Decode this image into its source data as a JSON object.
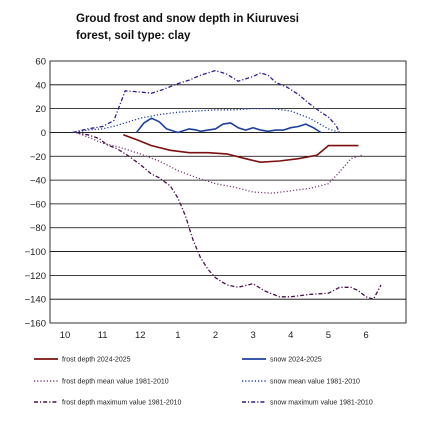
{
  "chart_data": {
    "type": "line",
    "title_lines": [
      "Groud frost and snow depth in Kiuruvesi",
      "forest, soil type: clay"
    ],
    "xlabel": "",
    "ylabel": "",
    "ylim": [
      -160,
      60
    ],
    "yticks": [
      60,
      40,
      20,
      0,
      -20,
      -40,
      -60,
      -80,
      -100,
      -120,
      -140,
      -160
    ],
    "xlim": [
      10,
      7
    ],
    "x_tick_labels": [
      "10",
      "11",
      "12",
      "1",
      "2",
      "3",
      "4",
      "5",
      "6"
    ],
    "grid": "horizontal",
    "legend_position": "bottom",
    "series": [
      {
        "name": "frost depth 2024-2025",
        "color": "#7b1010",
        "style": "solid",
        "points": [
          [
            11.55,
            -2
          ],
          [
            11.9,
            -6
          ],
          [
            12.3,
            -11
          ],
          [
            12.8,
            -15
          ],
          [
            13.3,
            -17
          ],
          [
            13.8,
            -17
          ],
          [
            14.3,
            -18
          ],
          [
            14.8,
            -22
          ],
          [
            15.2,
            -25
          ],
          [
            15.7,
            -24
          ],
          [
            16.2,
            -22
          ],
          [
            16.7,
            -19
          ],
          [
            17.0,
            -11
          ],
          [
            17.3,
            -11
          ],
          [
            17.6,
            -11
          ],
          [
            17.8,
            -11
          ]
        ]
      },
      {
        "name": "snow 2024-2025",
        "color": "#1f3fa0",
        "style": "solid",
        "points": [
          [
            11.9,
            0
          ],
          [
            12.1,
            8
          ],
          [
            12.3,
            12
          ],
          [
            12.5,
            9
          ],
          [
            12.7,
            3
          ],
          [
            13.0,
            0
          ],
          [
            13.3,
            3
          ],
          [
            13.5,
            2
          ],
          [
            13.6,
            1
          ],
          [
            13.8,
            2
          ],
          [
            14.0,
            3
          ],
          [
            14.2,
            7
          ],
          [
            14.4,
            8
          ],
          [
            14.6,
            4
          ],
          [
            14.8,
            2
          ],
          [
            15.0,
            4
          ],
          [
            15.2,
            2
          ],
          [
            15.4,
            1
          ],
          [
            15.6,
            2
          ],
          [
            15.8,
            2
          ],
          [
            16.0,
            4
          ],
          [
            16.2,
            5
          ],
          [
            16.4,
            7
          ],
          [
            16.6,
            4
          ],
          [
            16.8,
            0
          ]
        ]
      },
      {
        "name": "frost depth mean value 1981-2010",
        "color": "#7a3d7a",
        "style": "dotted",
        "points": [
          [
            10.3,
            0
          ],
          [
            10.7,
            -5
          ],
          [
            11.0,
            -9
          ],
          [
            11.4,
            -12
          ],
          [
            11.7,
            -15
          ],
          [
            12.0,
            -18
          ],
          [
            12.5,
            -24
          ],
          [
            13.0,
            -32
          ],
          [
            13.5,
            -38
          ],
          [
            14.0,
            -43
          ],
          [
            14.5,
            -46
          ],
          [
            15.0,
            -50
          ],
          [
            15.5,
            -51
          ],
          [
            16.0,
            -49
          ],
          [
            16.5,
            -47
          ],
          [
            17.0,
            -43
          ],
          [
            17.3,
            -33
          ],
          [
            17.6,
            -22
          ],
          [
            17.9,
            -19
          ]
        ]
      },
      {
        "name": "snow mean value 1981-2010",
        "color": "#1f3fa0",
        "style": "dotted",
        "points": [
          [
            10.2,
            0
          ],
          [
            10.6,
            2
          ],
          [
            11.0,
            3
          ],
          [
            11.4,
            6
          ],
          [
            11.7,
            9
          ],
          [
            12.0,
            12
          ],
          [
            12.5,
            15
          ],
          [
            13.0,
            17
          ],
          [
            13.5,
            18
          ],
          [
            14.0,
            19
          ],
          [
            14.5,
            19
          ],
          [
            15.0,
            20
          ],
          [
            15.5,
            20
          ],
          [
            16.0,
            18
          ],
          [
            16.5,
            12
          ],
          [
            17.0,
            3
          ],
          [
            17.3,
            0
          ]
        ]
      },
      {
        "name": "frost depth maximum value 1981-2010",
        "color": "#4a0f4a",
        "style": "dashdot",
        "points": [
          [
            10.3,
            0
          ],
          [
            10.6,
            -2
          ],
          [
            10.9,
            -5
          ],
          [
            11.1,
            -10
          ],
          [
            11.4,
            -14
          ],
          [
            11.7,
            -20
          ],
          [
            12.0,
            -27
          ],
          [
            12.3,
            -35
          ],
          [
            12.5,
            -38
          ],
          [
            12.8,
            -45
          ],
          [
            13.0,
            -55
          ],
          [
            13.2,
            -70
          ],
          [
            13.4,
            -90
          ],
          [
            13.6,
            -105
          ],
          [
            13.8,
            -115
          ],
          [
            14.0,
            -122
          ],
          [
            14.3,
            -128
          ],
          [
            14.6,
            -130
          ],
          [
            15.0,
            -127
          ],
          [
            15.3,
            -133
          ],
          [
            15.7,
            -138
          ],
          [
            16.0,
            -138
          ],
          [
            16.5,
            -136
          ],
          [
            17.0,
            -135
          ],
          [
            17.3,
            -130
          ],
          [
            17.6,
            -130
          ],
          [
            17.8,
            -133
          ],
          [
            18.0,
            -138
          ],
          [
            18.2,
            -140
          ],
          [
            18.4,
            -128
          ]
        ]
      },
      {
        "name": "snow maximum value 1981-2010",
        "color": "#2a1f90",
        "style": "dashdot",
        "points": [
          [
            10.2,
            0
          ],
          [
            10.6,
            3
          ],
          [
            11.0,
            5
          ],
          [
            11.3,
            10
          ],
          [
            11.6,
            35
          ],
          [
            12.0,
            34
          ],
          [
            12.3,
            33
          ],
          [
            12.6,
            36
          ],
          [
            13.0,
            41
          ],
          [
            13.3,
            44
          ],
          [
            13.6,
            48
          ],
          [
            14.0,
            52
          ],
          [
            14.3,
            49
          ],
          [
            14.6,
            43
          ],
          [
            15.0,
            47
          ],
          [
            15.2,
            50
          ],
          [
            15.4,
            48
          ],
          [
            15.6,
            42
          ],
          [
            15.9,
            38
          ],
          [
            16.2,
            32
          ],
          [
            16.5,
            24
          ],
          [
            16.8,
            17
          ],
          [
            17.0,
            13
          ],
          [
            17.2,
            6
          ],
          [
            17.3,
            0
          ]
        ]
      }
    ]
  }
}
